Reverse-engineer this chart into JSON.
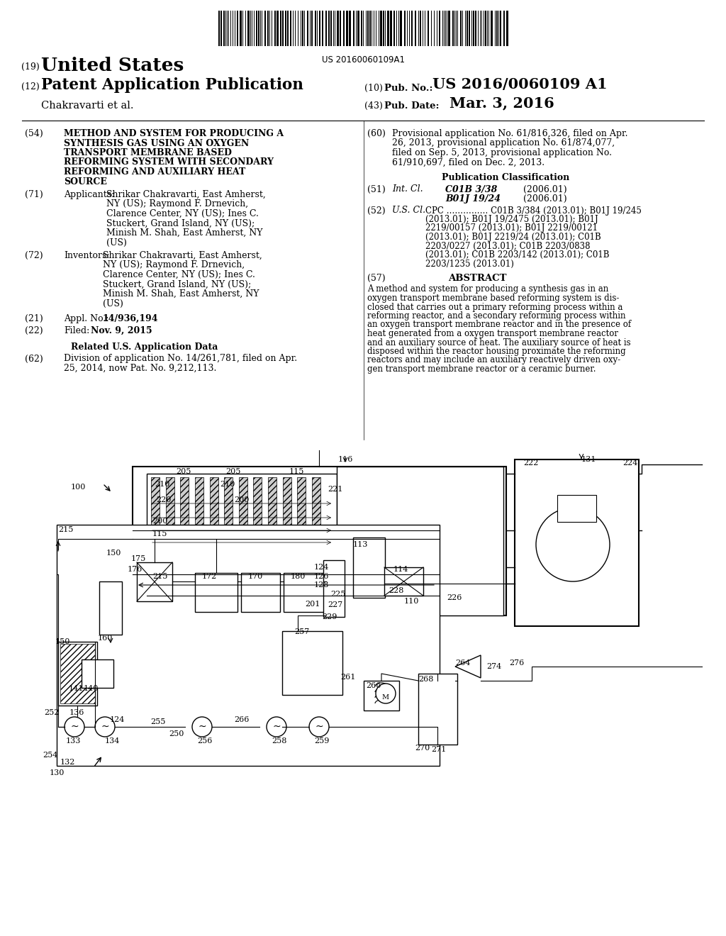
{
  "bg_color": "#ffffff",
  "barcode_text": "US 20160060109A1",
  "country": "United States",
  "pub_type": "Patent Application Publication",
  "authors": "Chakravarti et al.",
  "pub_no_label": "Pub. No.:",
  "pub_no_value": "US 2016/0060109 A1",
  "pub_date_label": "Pub. Date:",
  "pub_date_value": "Mar. 3, 2016",
  "field_54_title_lines": [
    "METHOD AND SYSTEM FOR PRODUCING A",
    "SYNTHESIS GAS USING AN OXYGEN",
    "TRANSPORT MEMBRANE BASED",
    "REFORMING SYSTEM WITH SECONDARY",
    "REFORMING AND AUXILIARY HEAT",
    "SOURCE"
  ],
  "app_lines": [
    "Shrikar Chakravarti, East Amherst,",
    "NY (US); Raymond F. Drnevich,",
    "Clarence Center, NY (US); Ines C.",
    "Stuckert, Grand Island, NY (US);",
    "Minish M. Shah, East Amherst, NY",
    "(US)"
  ],
  "inv_lines": [
    "Shrikar Chakravarti, East Amherst,",
    "NY (US); Raymond F. Drnevich,",
    "Clarence Center, NY (US); Ines C.",
    "Stuckert, Grand Island, NY (US);",
    "Minish M. Shah, East Amherst, NY",
    "(US)"
  ],
  "appl_no": "14/936,194",
  "filed": "Nov. 9, 2015",
  "related_header": "Related U.S. Application Data",
  "field_62_lines": [
    "Division of application No. 14/261,781, filed on Apr.",
    "25, 2014, now Pat. No. 9,212,113."
  ],
  "field_60_lines": [
    "Provisional application No. 61/816,326, filed on Apr.",
    "26, 2013, provisional application No. 61/874,077,",
    "filed on Sep. 5, 2013, provisional application No.",
    "61/910,697, filed on Dec. 2, 2013."
  ],
  "pub_class_header": "Publication Classification",
  "int_cl_c1": "C01B 3/38",
  "int_cl_c1y": "(2006.01)",
  "int_cl_c2": "B01J 19/24",
  "int_cl_c2y": "(2006.01)",
  "cpc_lines": [
    "CPC …………… C01B 3/384 (2013.01); B01J 19/245",
    "(2013.01); B01J 19/2475 (2013.01); B01J",
    "2219/00157 (2013.01); B01J 2219/00121",
    "(2013.01); B01J 2219/24 (2013.01); C01B",
    "2203/0227 (2013.01); C01B 2203/0838",
    "(2013.01); C01B 2203/142 (2013.01); C01B",
    "2203/1235 (2013.01)"
  ],
  "abstract_lines": [
    "A method and system for producing a synthesis gas in an",
    "oxygen transport membrane based reforming system is dis-",
    "closed that carries out a primary reforming process within a",
    "reforming reactor, and a secondary reforming process within",
    "an oxygen transport membrane reactor and in the presence of",
    "heat generated from a oxygen transport membrane reactor",
    "and an auxiliary source of heat. The auxiliary source of heat is",
    "disposed within the reactor housing proximate the reforming",
    "reactors and may include an auxiliary reactively driven oxy-",
    "gen transport membrane reactor or a ceramic burner."
  ]
}
